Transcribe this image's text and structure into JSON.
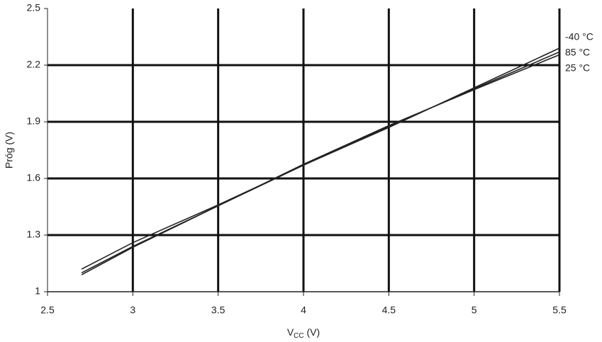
{
  "chart_data": {
    "type": "line",
    "y_label": "Próg (V)",
    "x_label_parts": [
      "V",
      "CC",
      " (V)"
    ],
    "x": [
      2.7,
      3,
      3.5,
      4,
      4.5,
      5,
      5.5
    ],
    "series": [
      {
        "name": "-40 °C",
        "color": "#222222",
        "values": [
          1.12,
          1.26,
          1.46,
          1.67,
          1.87,
          2.08,
          2.29
        ]
      },
      {
        "name": "85 °C",
        "color": "#222222",
        "values": [
          1.1,
          1.24,
          1.455,
          1.67,
          1.875,
          2.075,
          2.27
        ]
      },
      {
        "name": "25 °C",
        "color": "#222222",
        "values": [
          1.09,
          1.235,
          1.455,
          1.675,
          1.88,
          2.07,
          2.255
        ]
      }
    ],
    "xlim": [
      2.5,
      5.5
    ],
    "xticks": [
      2.5,
      3,
      3.5,
      4,
      4.5,
      5,
      5.5
    ],
    "ylim": [
      1,
      2.5
    ],
    "yticks": [
      1,
      1.3,
      1.6,
      1.9,
      2.2,
      2.5
    ],
    "grid": true
  }
}
